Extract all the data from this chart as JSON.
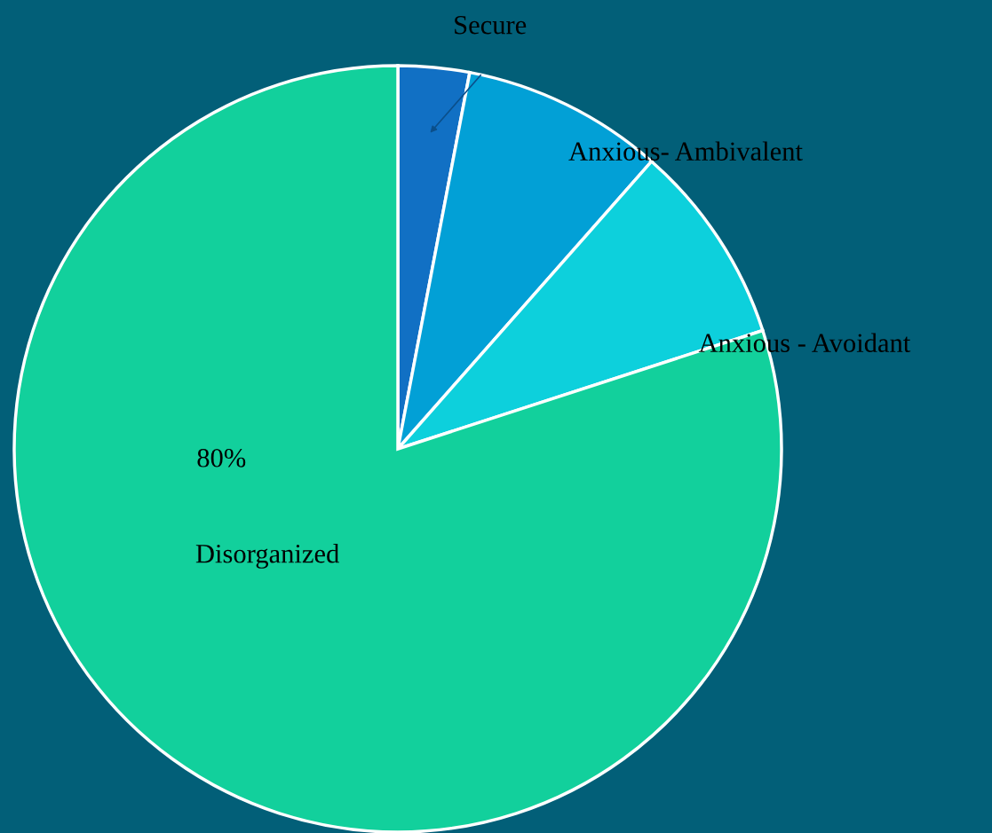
{
  "chart_data": {
    "type": "pie",
    "categories": [
      "Secure",
      "Anxious- Ambivalent",
      "Anxious - Avoidant",
      "Disorganized"
    ],
    "values": [
      3,
      8.5,
      8.5,
      80
    ],
    "colors": [
      "#1170c4",
      "#02a0d6",
      "#0dd0dc",
      "#12d09c"
    ],
    "value_labels": [
      null,
      null,
      null,
      "80%"
    ]
  }
}
